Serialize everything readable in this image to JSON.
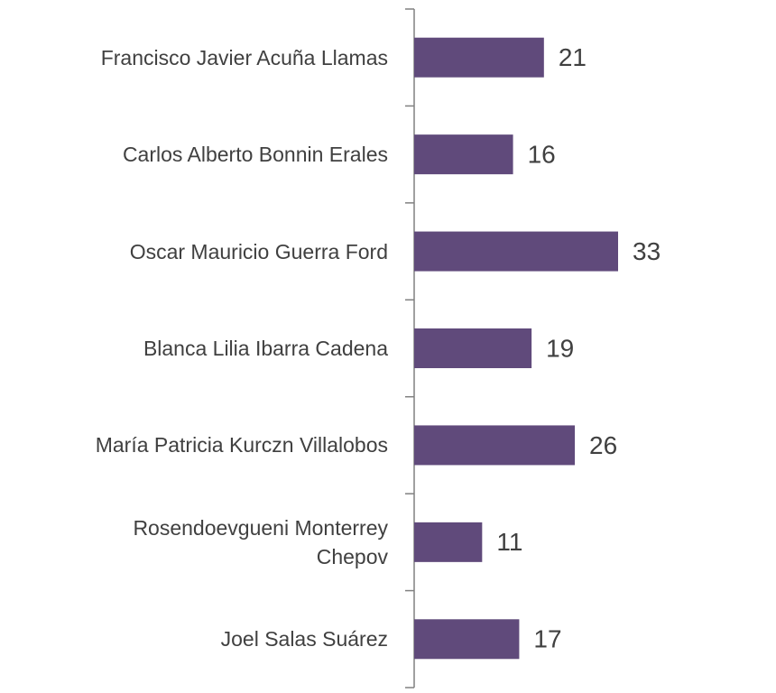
{
  "chart_data": {
    "type": "bar",
    "orientation": "horizontal",
    "color": "#604a7b",
    "categories": [
      "Francisco Javier Acuña Llamas",
      "Carlos Alberto Bonnin Erales",
      "Oscar Mauricio Guerra Ford",
      "Blanca Lilia Ibarra Cadena",
      "María Patricia Kurczn Villalobos",
      "Rosendoevgueni Monterrey\nChepov",
      "Joel Salas Suárez"
    ],
    "values": [
      21,
      16,
      33,
      19,
      26,
      11,
      17
    ]
  }
}
